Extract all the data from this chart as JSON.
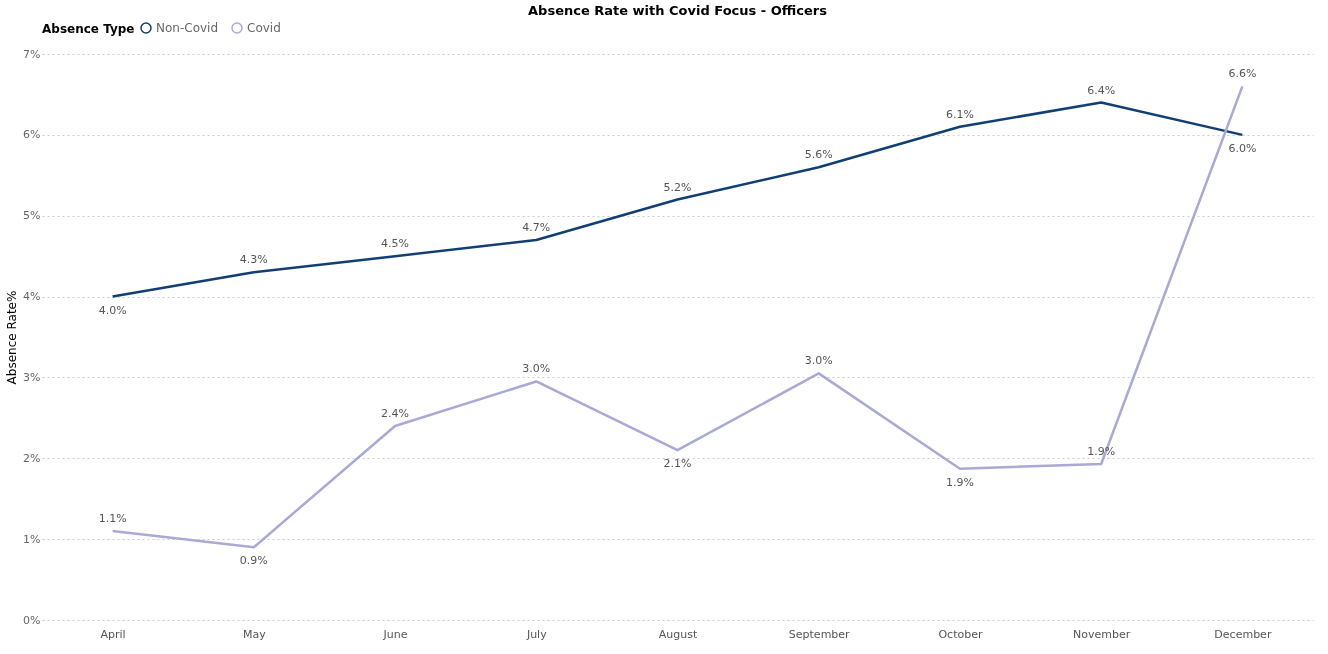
{
  "chart_data": {
    "type": "line",
    "title": "Absence Rate with Covid Focus - Officers",
    "ylabel": "Absence Rate%",
    "legend_title": "Absence Type",
    "legend": "top left",
    "grid": "y",
    "marker": "none",
    "line_style": "solid",
    "categories": [
      "April",
      "May",
      "June",
      "July",
      "August",
      "September",
      "October",
      "November",
      "December"
    ],
    "ylim": [
      0,
      7
    ],
    "yticks": [
      {
        "value": 0,
        "label": "0%"
      },
      {
        "value": 1,
        "label": "1%"
      },
      {
        "value": 2,
        "label": "2%"
      },
      {
        "value": 3,
        "label": "3%"
      },
      {
        "value": 4,
        "label": "4%"
      },
      {
        "value": 5,
        "label": "5%"
      },
      {
        "value": 6,
        "label": "6%"
      },
      {
        "value": 7,
        "label": "7%"
      }
    ],
    "series": [
      {
        "name": "Non-Covid",
        "color": "#123f73",
        "values": [
          4.0,
          4.3,
          4.5,
          4.7,
          5.2,
          5.6,
          6.1,
          6.4,
          6.0
        ],
        "value_labels": [
          "4.0%",
          "4.3%",
          "4.5%",
          "4.7%",
          "5.2%",
          "5.6%",
          "6.1%",
          "6.4%",
          "6.0%"
        ]
      },
      {
        "name": "Covid",
        "color": "#a9a9d6",
        "values": [
          1.1,
          0.9,
          2.4,
          2.95,
          2.1,
          3.05,
          1.87,
          1.93,
          6.6
        ],
        "value_labels": [
          "1.1%",
          "0.9%",
          "2.4%",
          "3.0%",
          "2.1%",
          "3.0%",
          "1.9%",
          "1.9%",
          "6.6%"
        ]
      }
    ]
  }
}
